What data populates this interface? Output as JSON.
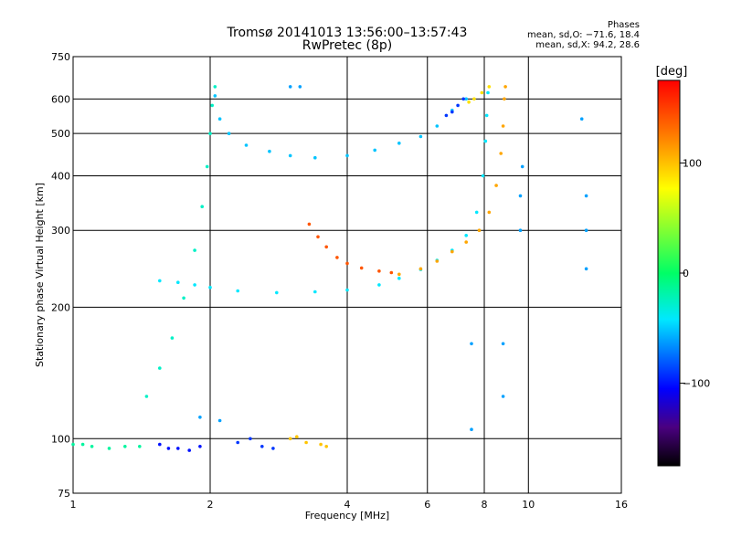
{
  "header": {
    "title_line1": "Tromsø 20141013 13:56:00–13:57:43",
    "title_line2": "RwPretec (8p)",
    "phase_heading": "Phases",
    "phase_o": "mean, sd,O: −71.6, 18.4",
    "phase_x": "mean, sd,X:  94.2, 28.6"
  },
  "colorbar": {
    "label": "[deg]",
    "ticks": [
      "100",
      "0",
      "−100"
    ],
    "tick_values": [
      100,
      0,
      -100
    ],
    "range": [
      -175,
      175
    ]
  },
  "chart_data": {
    "type": "scatter",
    "xlabel": "Frequency [MHz]",
    "ylabel": "Stationary phase Virtual Height [km]",
    "x_scale": "log",
    "y_scale": "log",
    "xlim": [
      1,
      16
    ],
    "ylim": [
      75,
      750
    ],
    "x_ticks": [
      1,
      2,
      4,
      6,
      8,
      10,
      16
    ],
    "x_tick_labels": [
      "1",
      "2",
      "4",
      "6",
      "8",
      "10",
      "16"
    ],
    "y_ticks": [
      75,
      100,
      200,
      300,
      400,
      500,
      600,
      750
    ],
    "y_tick_labels": [
      "75",
      "100",
      "200",
      "300",
      "400",
      "500",
      "600",
      "750"
    ],
    "grid": true,
    "color_variable": "phase",
    "series": [
      {
        "id": "E-trace",
        "phase": -15,
        "points": [
          [
            1.0,
            97
          ],
          [
            1.05,
            97
          ],
          [
            1.1,
            96
          ],
          [
            1.2,
            95
          ],
          [
            1.3,
            96
          ],
          [
            1.4,
            96
          ]
        ]
      },
      {
        "id": "Es-2MHz",
        "phase": -100,
        "points": [
          [
            1.55,
            97
          ],
          [
            1.62,
            95
          ],
          [
            1.7,
            95
          ],
          [
            1.8,
            94
          ],
          [
            1.9,
            96
          ]
        ]
      },
      {
        "id": "Es-2.4MHz",
        "phase": -90,
        "points": [
          [
            2.3,
            98
          ],
          [
            2.45,
            100
          ],
          [
            2.6,
            96
          ],
          [
            2.75,
            95
          ]
        ]
      },
      {
        "id": "Es-3MHz",
        "phase": 100,
        "points": [
          [
            3.0,
            100
          ],
          [
            3.1,
            101
          ],
          [
            3.25,
            98
          ],
          [
            3.5,
            97
          ],
          [
            3.6,
            96
          ]
        ]
      },
      {
        "id": "F-lower-O",
        "phase": -40,
        "points": [
          [
            1.55,
            230
          ],
          [
            1.7,
            228
          ],
          [
            1.85,
            225
          ],
          [
            2.0,
            222
          ],
          [
            2.3,
            218
          ],
          [
            2.8,
            216
          ],
          [
            3.4,
            217
          ],
          [
            4.0,
            219
          ],
          [
            4.7,
            225
          ],
          [
            5.2,
            233
          ],
          [
            5.8,
            244
          ],
          [
            6.3,
            256
          ],
          [
            6.8,
            270
          ],
          [
            7.3,
            292
          ],
          [
            7.7,
            330
          ],
          [
            7.95,
            400
          ],
          [
            8.05,
            480
          ],
          [
            8.1,
            550
          ],
          [
            8.15,
            620
          ]
        ]
      },
      {
        "id": "F1-cusp",
        "phase": -25,
        "points": [
          [
            1.45,
            125
          ],
          [
            1.55,
            145
          ],
          [
            1.65,
            170
          ],
          [
            1.75,
            210
          ],
          [
            1.85,
            270
          ],
          [
            1.92,
            340
          ],
          [
            1.97,
            420
          ],
          [
            2.0,
            500
          ],
          [
            2.02,
            580
          ],
          [
            2.05,
            640
          ]
        ]
      },
      {
        "id": "F-upper-O",
        "phase": -50,
        "points": [
          [
            2.05,
            610
          ],
          [
            2.1,
            540
          ],
          [
            2.2,
            500
          ],
          [
            2.4,
            470
          ],
          [
            2.7,
            455
          ],
          [
            3.0,
            445
          ],
          [
            3.4,
            440
          ],
          [
            4.0,
            445
          ],
          [
            4.6,
            458
          ],
          [
            5.2,
            475
          ],
          [
            5.8,
            492
          ],
          [
            6.3,
            520
          ],
          [
            6.8,
            565
          ],
          [
            7.3,
            600
          ]
        ]
      },
      {
        "id": "F-X-lower",
        "phase": 140,
        "points": [
          [
            3.3,
            310
          ],
          [
            3.45,
            290
          ],
          [
            3.6,
            275
          ],
          [
            3.8,
            260
          ],
          [
            4.0,
            252
          ],
          [
            4.3,
            246
          ],
          [
            4.7,
            242
          ],
          [
            5.0,
            240
          ]
        ]
      },
      {
        "id": "F-X-upper",
        "phase": 110,
        "points": [
          [
            5.2,
            238
          ],
          [
            5.8,
            245
          ],
          [
            6.3,
            255
          ],
          [
            6.8,
            268
          ],
          [
            7.3,
            282
          ],
          [
            7.8,
            300
          ],
          [
            8.2,
            330
          ],
          [
            8.5,
            380
          ],
          [
            8.7,
            450
          ],
          [
            8.8,
            520
          ],
          [
            8.85,
            600
          ],
          [
            8.9,
            640
          ]
        ]
      },
      {
        "id": "top-X",
        "phase": 90,
        "points": [
          [
            7.4,
            590
          ],
          [
            7.6,
            600
          ],
          [
            7.9,
            620
          ],
          [
            8.2,
            640
          ]
        ]
      },
      {
        "id": "top-O",
        "phase": -90,
        "points": [
          [
            6.6,
            550
          ],
          [
            6.8,
            560
          ],
          [
            7.0,
            580
          ],
          [
            7.2,
            600
          ]
        ]
      },
      {
        "id": "stray",
        "phase": -60,
        "points": [
          [
            3.0,
            640
          ],
          [
            3.15,
            640
          ],
          [
            13.1,
            540
          ],
          [
            13.4,
            360
          ],
          [
            13.4,
            300
          ],
          [
            13.4,
            245
          ],
          [
            9.6,
            300
          ],
          [
            9.6,
            360
          ],
          [
            9.7,
            420
          ],
          [
            7.5,
            165
          ],
          [
            7.5,
            105
          ],
          [
            8.8,
            165
          ],
          [
            8.8,
            125
          ],
          [
            2.1,
            110
          ],
          [
            1.9,
            112
          ]
        ]
      }
    ]
  }
}
